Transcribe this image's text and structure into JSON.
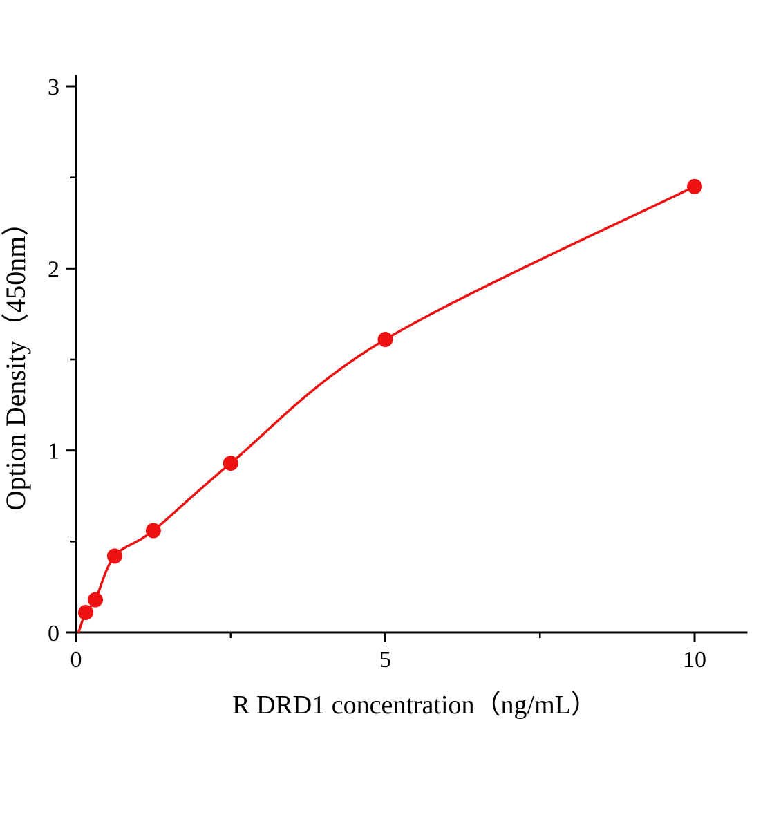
{
  "chart_data": {
    "type": "scatter",
    "title": "",
    "xlabel": "R DRD1  concentration（ng/mL）",
    "ylabel": "Option Density（450nm）",
    "x": [
      0.156,
      0.3125,
      0.625,
      1.25,
      2.5,
      5,
      10
    ],
    "y": [
      0.11,
      0.18,
      0.42,
      0.56,
      0.93,
      1.61,
      2.45
    ],
    "curve_start": [
      0.04,
      0.0
    ],
    "xlim": [
      0,
      10.84
    ],
    "ylim": [
      0,
      3.06
    ],
    "x_major_ticks": [
      {
        "v": 0,
        "label": "0"
      },
      {
        "v": 5,
        "label": "5"
      },
      {
        "v": 10,
        "label": "10"
      }
    ],
    "x_minor_ticks": [
      2.5,
      7.5
    ],
    "y_major_ticks": [
      {
        "v": 0,
        "label": "0"
      },
      {
        "v": 1,
        "label": "1"
      },
      {
        "v": 2,
        "label": "2"
      },
      {
        "v": 3,
        "label": "3"
      }
    ],
    "y_minor_ticks": [
      0.5,
      1.5,
      2.5
    ],
    "point_color": "#ee1111",
    "line_color": "#ee1111",
    "axis_color": "#000000",
    "grid": false,
    "legend": null
  }
}
